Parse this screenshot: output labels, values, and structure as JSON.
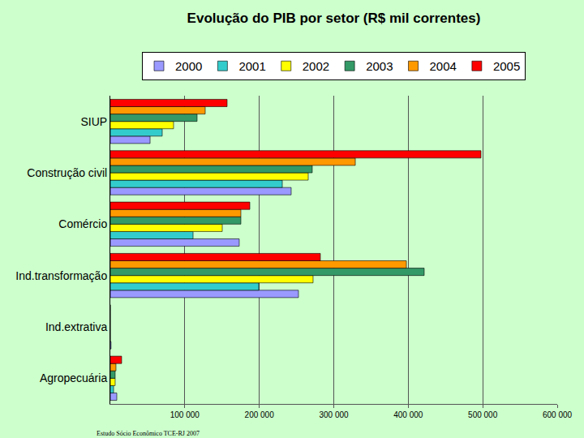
{
  "chart_data": {
    "type": "bar",
    "title": "Evolução do PIB por setor (R$ mil correntes)",
    "orientation": "horizontal",
    "categories": [
      "Agropecuária",
      "Ind.extrativa",
      "Ind.transformação",
      "Comércio",
      "Construção civil",
      "SIUP"
    ],
    "series": [
      {
        "name": "2000",
        "color": "#9999ff",
        "values": [
          8700,
          1000,
          252600,
          173100,
          242800,
          53400
        ]
      },
      {
        "name": "2001",
        "color": "#33cccc",
        "values": [
          4400,
          0,
          199300,
          111100,
          230900,
          69700
        ]
      },
      {
        "name": "2002",
        "color": "#ffff00",
        "values": [
          6500,
          0,
          272200,
          150300,
          265700,
          84900
        ]
      },
      {
        "name": "2003",
        "color": "#339966",
        "values": [
          6500,
          0,
          421400,
          175300,
          271100,
          116500
        ]
      },
      {
        "name": "2004",
        "color": "#ff9900",
        "values": [
          7600,
          0,
          397500,
          175300,
          328900,
          127400
        ]
      },
      {
        "name": "2005",
        "color": "#ff0000",
        "values": [
          15200,
          0,
          282000,
          187300,
          497600,
          156800
        ]
      }
    ],
    "xlim": [
      0,
      600000
    ],
    "xticks": [
      {
        "value": 100000,
        "label": "100 000"
      },
      {
        "value": 200000,
        "label": "200 000"
      },
      {
        "value": 300000,
        "label": "300 000"
      },
      {
        "value": 400000,
        "label": "400 000"
      },
      {
        "value": 500000,
        "label": "500 000"
      },
      {
        "value": 600000,
        "label": "600 000"
      }
    ],
    "grid": true,
    "legend": "top",
    "annotations": [
      "Estudo Sócio Econômico TCE-RJ 2007"
    ]
  }
}
